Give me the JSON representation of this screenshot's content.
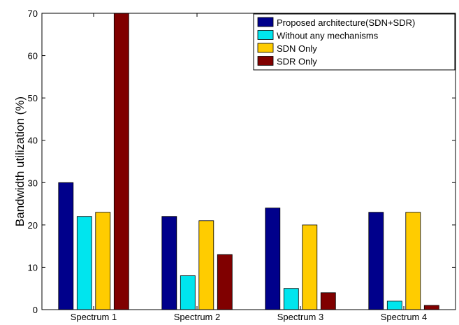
{
  "chart_data": {
    "type": "bar",
    "title": "",
    "xlabel": "",
    "ylabel": "Bandwidth utilization (%)",
    "ylim": [
      0,
      70
    ],
    "yticks": [
      0,
      10,
      20,
      30,
      40,
      50,
      60,
      70
    ],
    "grid": false,
    "legend_position": "top-right",
    "categories": [
      "Spectrum 1",
      "Spectrum 2",
      "Spectrum 3",
      "Spectrum 4"
    ],
    "series": [
      {
        "name": "Proposed architecture(SDN+SDR)",
        "color": "#00008B",
        "values": [
          30,
          22,
          24,
          23
        ]
      },
      {
        "name": "Without any mechanisms",
        "color": "#00E5EE",
        "values": [
          22,
          8,
          5,
          2
        ]
      },
      {
        "name": "SDN Only",
        "color": "#FFCC00",
        "values": [
          23,
          21,
          20,
          23
        ]
      },
      {
        "name": "SDR Only",
        "color": "#800000",
        "values": [
          70,
          13,
          4,
          1
        ]
      }
    ]
  }
}
